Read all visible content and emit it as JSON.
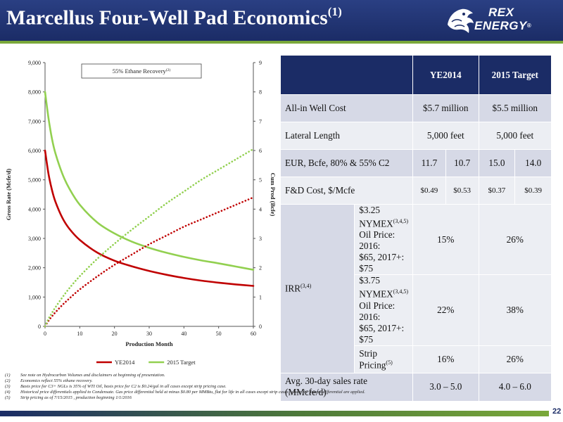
{
  "header": {
    "title": "Marcellus Four-Well Pad Economics",
    "title_sup": "(1)",
    "logo_line1": "REX",
    "logo_line2": "ENERGY",
    "logo_mark": "®"
  },
  "colors": {
    "navy": "#1b2c66",
    "green": "#7aa83a",
    "ye2014": "#c00000",
    "target2015": "#92d050"
  },
  "chart_data": {
    "type": "line",
    "annotation": "55% Ethane Recovery",
    "annotation_sup": "(2)",
    "xlabel": "Production Month",
    "ylabel": "Gross Rate (Mcfe/d)",
    "y2label": "Cum Prod (Bcfe)",
    "xlim": [
      0,
      60
    ],
    "ylim": [
      0,
      9000
    ],
    "y2lim": [
      0,
      9
    ],
    "x_ticks": [
      "0",
      "10",
      "20",
      "30",
      "40",
      "50",
      "60"
    ],
    "y_ticks": [
      "0",
      "1,000",
      "2,000",
      "3,000",
      "4,000",
      "5,000",
      "6,000",
      "7,000",
      "8,000",
      "9,000"
    ],
    "y2_ticks": [
      "0",
      "1",
      "2",
      "3",
      "4",
      "5",
      "6",
      "7",
      "8",
      "9"
    ],
    "legend_position": "bottom",
    "grid": false,
    "x": [
      0,
      1,
      2,
      3,
      5,
      7,
      10,
      15,
      20,
      25,
      30,
      35,
      40,
      45,
      50,
      55,
      60
    ],
    "series": [
      {
        "name": "YE2014",
        "axis": "left",
        "style": "solid",
        "color": "#c00000",
        "values": [
          6000,
          5200,
          4650,
          4250,
          3700,
          3330,
          2950,
          2520,
          2240,
          2050,
          1890,
          1760,
          1650,
          1560,
          1490,
          1430,
          1380
        ]
      },
      {
        "name": "2015 Target",
        "axis": "left",
        "style": "solid",
        "color": "#92d050",
        "values": [
          8000,
          7100,
          6400,
          5900,
          5200,
          4700,
          4150,
          3550,
          3170,
          2890,
          2680,
          2510,
          2370,
          2250,
          2150,
          2040,
          1930
        ]
      },
      {
        "name": "YE2014",
        "axis": "right",
        "style": "dotted",
        "color": "#c00000",
        "in_legend": false,
        "values": [
          0,
          0.19,
          0.34,
          0.48,
          0.73,
          0.95,
          1.26,
          1.7,
          2.1,
          2.45,
          2.8,
          3.1,
          3.4,
          3.65,
          3.9,
          4.15,
          4.4
        ]
      },
      {
        "name": "2015 Target",
        "axis": "right",
        "style": "dotted",
        "color": "#92d050",
        "in_legend": false,
        "values": [
          0,
          0.26,
          0.46,
          0.65,
          0.99,
          1.3,
          1.71,
          2.3,
          2.82,
          3.3,
          3.75,
          4.2,
          4.6,
          5.0,
          5.35,
          5.7,
          6.05
        ]
      }
    ]
  },
  "table": {
    "col_ye2014": "YE2014",
    "col_2015": "2015 Target",
    "rows": {
      "well_cost": {
        "label": "All-in Well Cost",
        "ye2014": "$5.7 million",
        "t2015": "$5.5 million"
      },
      "lateral": {
        "label": "Lateral Length",
        "ye2014": "5,000 feet",
        "t2015": "5,000 feet"
      },
      "eur": {
        "label": "EUR, Bcfe, 80% & 55% C2",
        "v1": "11.7",
        "v2": "10.7",
        "v3": "15.0",
        "v4": "14.0"
      },
      "fd": {
        "label": "F&D Cost, $/Mcfe",
        "v1": "$0.49",
        "v2": "$0.53",
        "v3": "$0.37",
        "v4": "$0.39"
      },
      "irr": {
        "label": "IRR",
        "label_sup": "(3,4)",
        "case1": {
          "l1": "$3.25",
          "l2": "NYMEX",
          "l2_sup": "(3,4,5)",
          "l3": "Oil Price: 2016:",
          "l4": "$65, 2017+: $75",
          "ye2014": "15%",
          "t2015": "26%"
        },
        "case2": {
          "l1": "$3.75",
          "l2": "NYMEX",
          "l2_sup": "(3,4,5)",
          "l3": "Oil Price: 2016:",
          "l4": "$65, 2017+: $75",
          "ye2014": "22%",
          "t2015": "38%"
        },
        "case3": {
          "label": "Strip Pricing",
          "label_sup": "(5)",
          "ye2014": "16%",
          "t2015": "26%"
        }
      },
      "sales": {
        "label": "Avg. 30-day sales rate (MMcfe/d)",
        "ye2014": "3.0 – 5.0",
        "t2015": "4.0 – 6.0"
      }
    }
  },
  "footnotes": [
    {
      "num": "(1)",
      "text": "See note on Hydrocarbon Volumes and disclaimers at beginning of presentation."
    },
    {
      "num": "(2)",
      "text": "Economics reflect 55% ethane recovery."
    },
    {
      "num": "(3)",
      "text": "Basis price for C3+ NGLs is 35% of WTI Oil, basis price for C2 is $0.24/gal in all cases except strip pricing case."
    },
    {
      "num": "(4)",
      "text": "Historical price differentials applied to Condensate. Gas price differential held at minus $0.80 per MMBtu, flat for life in all cases except strip cases, where the futures differential are applied."
    },
    {
      "num": "(5)",
      "text": "Strip pricing as of 7/15/2015 , production beginning 1/1/2016"
    }
  ],
  "page_number": "22"
}
